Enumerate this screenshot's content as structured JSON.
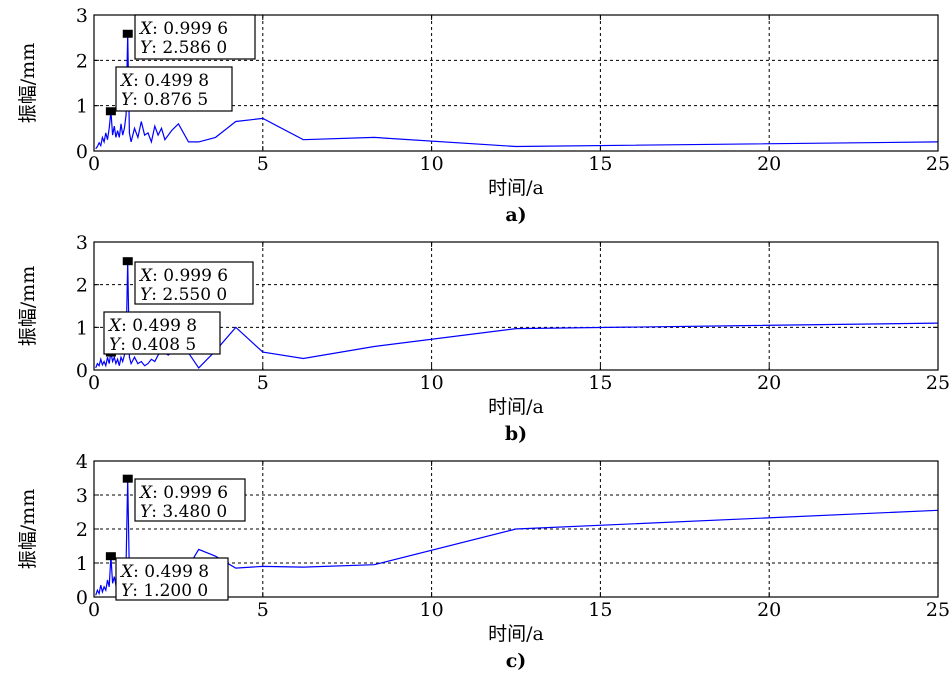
{
  "chart_data": [
    {
      "type": "line",
      "panel_label": "a)",
      "xlabel": "时间/a",
      "ylabel": "振幅/mm",
      "xlim": [
        0,
        25
      ],
      "ylim": [
        0,
        3
      ],
      "xticks": [
        0,
        5,
        10,
        15,
        20,
        25
      ],
      "yticks": [
        0,
        1,
        2,
        3
      ],
      "grid": true,
      "line_color": "#0000ff",
      "x": [
        0.05,
        0.1,
        0.15,
        0.2,
        0.25,
        0.3,
        0.35,
        0.4,
        0.45,
        0.4998,
        0.55,
        0.6,
        0.65,
        0.7,
        0.75,
        0.8,
        0.85,
        0.9,
        0.95,
        0.9996,
        1.05,
        1.1,
        1.2,
        1.3,
        1.4,
        1.5,
        1.6,
        1.7,
        1.8,
        1.9,
        2.0,
        2.1,
        2.3,
        2.5,
        2.8,
        3.1,
        3.6,
        4.2,
        5.0,
        6.2,
        8.3,
        12.5,
        25.0
      ],
      "y": [
        0.05,
        0.1,
        0.18,
        0.12,
        0.3,
        0.2,
        0.4,
        0.25,
        0.5,
        0.8765,
        0.35,
        0.55,
        0.3,
        0.45,
        0.3,
        0.6,
        0.35,
        0.5,
        0.8,
        2.586,
        0.4,
        0.2,
        0.5,
        0.3,
        0.65,
        0.35,
        0.4,
        0.2,
        0.55,
        0.35,
        0.5,
        0.25,
        0.45,
        0.6,
        0.2,
        0.2,
        0.3,
        0.65,
        0.72,
        0.25,
        0.3,
        0.1,
        0.2
      ],
      "annotations": [
        {
          "x": 0.9996,
          "y": 2.586,
          "x_label": "X",
          "y_label": "Y",
          "x_text": ": 0.999 6",
          "y_text": ": 2.586 0"
        },
        {
          "x": 0.4998,
          "y": 0.8765,
          "x_label": "X",
          "y_label": "Y",
          "x_text": ": 0.499 8",
          "y_text": ": 0.876 5"
        }
      ]
    },
    {
      "type": "line",
      "panel_label": "b)",
      "xlabel": "时间/a",
      "ylabel": "振幅/mm",
      "xlim": [
        0,
        25
      ],
      "ylim": [
        0,
        3
      ],
      "xticks": [
        0,
        5,
        10,
        15,
        20,
        25
      ],
      "yticks": [
        0,
        1,
        2,
        3
      ],
      "grid": true,
      "line_color": "#0000ff",
      "x": [
        0.05,
        0.1,
        0.15,
        0.2,
        0.25,
        0.3,
        0.35,
        0.4,
        0.45,
        0.4998,
        0.55,
        0.6,
        0.65,
        0.7,
        0.75,
        0.8,
        0.85,
        0.9,
        0.95,
        0.9996,
        1.05,
        1.1,
        1.2,
        1.3,
        1.4,
        1.5,
        1.6,
        1.7,
        1.8,
        1.9,
        2.0,
        2.2,
        2.5,
        2.8,
        3.1,
        3.6,
        4.2,
        5.0,
        6.2,
        8.3,
        12.5,
        25.0
      ],
      "y": [
        0.05,
        0.15,
        0.1,
        0.25,
        0.12,
        0.2,
        0.1,
        0.3,
        0.15,
        0.4085,
        0.2,
        0.3,
        0.15,
        0.25,
        0.1,
        0.3,
        0.2,
        0.35,
        0.6,
        2.55,
        0.3,
        0.15,
        0.3,
        0.15,
        0.2,
        0.1,
        0.15,
        0.25,
        0.2,
        0.35,
        0.45,
        0.35,
        0.55,
        0.4,
        0.05,
        0.45,
        1.0,
        0.42,
        0.27,
        0.55,
        0.97,
        1.1
      ],
      "annotations": [
        {
          "x": 0.9996,
          "y": 2.55,
          "x_label": "X",
          "y_label": "Y",
          "x_text": ": 0.999 6",
          "y_text": ": 2.550 0"
        },
        {
          "x": 0.4998,
          "y": 0.4085,
          "x_label": "X",
          "y_label": "Y",
          "x_text": ": 0.499 8",
          "y_text": ": 0.408 5"
        }
      ]
    },
    {
      "type": "line",
      "panel_label": "c)",
      "xlabel": "时间/a",
      "ylabel": "振幅/mm",
      "xlim": [
        0,
        25
      ],
      "ylim": [
        0,
        4
      ],
      "xticks": [
        0,
        5,
        10,
        15,
        20,
        25
      ],
      "yticks": [
        0,
        1,
        2,
        3,
        4
      ],
      "grid": true,
      "line_color": "#0000ff",
      "x": [
        0.05,
        0.1,
        0.15,
        0.2,
        0.25,
        0.3,
        0.35,
        0.4,
        0.45,
        0.4998,
        0.55,
        0.6,
        0.65,
        0.7,
        0.75,
        0.8,
        0.85,
        0.9,
        0.95,
        0.9996,
        1.05,
        1.1,
        1.2,
        1.3,
        1.4,
        1.5,
        1.6,
        1.7,
        1.8,
        2.0,
        2.2,
        2.5,
        2.8,
        3.1,
        3.6,
        4.2,
        5.0,
        6.2,
        8.3,
        12.5,
        25.0
      ],
      "y": [
        0.05,
        0.2,
        0.1,
        0.35,
        0.15,
        0.3,
        0.2,
        0.5,
        0.3,
        1.2,
        0.4,
        0.6,
        0.35,
        0.5,
        0.3,
        0.7,
        0.4,
        0.6,
        1.0,
        3.48,
        0.6,
        0.4,
        0.7,
        0.5,
        0.8,
        0.6,
        0.9,
        0.7,
        0.8,
        0.9,
        0.75,
        1.0,
        0.9,
        1.4,
        1.2,
        0.85,
        0.9,
        0.88,
        0.95,
        2.0,
        2.55
      ],
      "annotations": [
        {
          "x": 0.9996,
          "y": 3.48,
          "x_label": "X",
          "y_label": "Y",
          "x_text": ": 0.999 6",
          "y_text": ": 3.480 0"
        },
        {
          "x": 0.4998,
          "y": 1.2,
          "x_label": "X",
          "y_label": "Y",
          "x_text": ": 0.499 8",
          "y_text": ": 1.200 0"
        }
      ]
    }
  ]
}
